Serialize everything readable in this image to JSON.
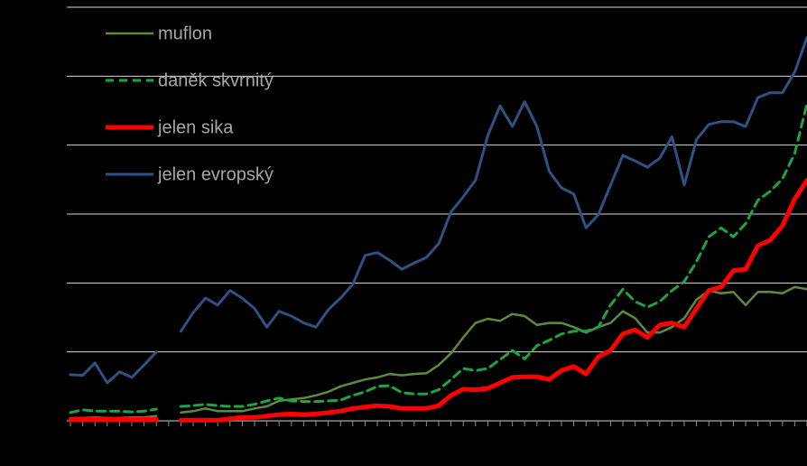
{
  "chart_data": {
    "type": "line",
    "categories": [
      null,
      null,
      null,
      null,
      null,
      null,
      null,
      null,
      null,
      null,
      null,
      null,
      null,
      null,
      null,
      null,
      null,
      null,
      null,
      null,
      null,
      null,
      null,
      null,
      null,
      null,
      null,
      null,
      null,
      null,
      null,
      null,
      null,
      null,
      null,
      null,
      null,
      null,
      null,
      null,
      null,
      null,
      null,
      null,
      null,
      null,
      null,
      null,
      null,
      null,
      null,
      null,
      null,
      null,
      null,
      null,
      null,
      null,
      null,
      null,
      null
    ],
    "series": [
      {
        "name": "muflon",
        "color": "#5e8c3a",
        "linewidth": 2.5,
        "linestyle": "solid",
        "values": [
          0.04,
          0.04,
          0.05,
          0.04,
          0.04,
          0.05,
          0.05,
          0.07,
          null,
          0.12,
          0.14,
          0.18,
          0.14,
          0.14,
          0.14,
          0.18,
          0.21,
          0.29,
          0.31,
          0.33,
          0.37,
          0.42,
          0.5,
          0.55,
          0.6,
          0.63,
          0.68,
          0.66,
          0.68,
          0.69,
          0.81,
          0.98,
          1.21,
          1.42,
          1.48,
          1.45,
          1.55,
          1.52,
          1.39,
          1.42,
          1.42,
          1.36,
          1.28,
          1.36,
          1.42,
          1.59,
          1.49,
          1.28,
          1.28,
          1.36,
          1.49,
          1.76,
          1.89,
          1.85,
          1.87,
          1.68,
          1.87,
          1.87,
          1.85,
          1.94,
          1.91
        ]
      },
      {
        "name": "daněk skvrnitý",
        "color": "#1ea345",
        "linewidth": 3,
        "linestyle": "dashed",
        "values": [
          0.12,
          0.16,
          0.14,
          0.14,
          0.14,
          0.13,
          0.14,
          0.17,
          null,
          0.21,
          0.22,
          0.24,
          0.22,
          0.21,
          0.21,
          0.24,
          0.29,
          0.33,
          0.29,
          0.28,
          0.28,
          0.29,
          0.3,
          0.37,
          0.42,
          0.5,
          0.51,
          0.41,
          0.39,
          0.39,
          0.45,
          0.6,
          0.76,
          0.73,
          0.76,
          0.89,
          1.02,
          0.9,
          1.09,
          1.17,
          1.26,
          1.3,
          1.3,
          1.36,
          1.68,
          1.91,
          1.73,
          1.65,
          1.73,
          1.89,
          2.02,
          2.31,
          2.67,
          2.8,
          2.67,
          2.86,
          3.2,
          3.33,
          3.51,
          3.88,
          4.6
        ]
      },
      {
        "name": "jelen sika",
        "color": "#ff0000",
        "linewidth": 5,
        "linestyle": "solid",
        "values": [
          0.02,
          0.02,
          0.02,
          0.02,
          0.02,
          0.02,
          0.02,
          0.02,
          null,
          0.01,
          0.01,
          0.01,
          0.01,
          0.03,
          0.05,
          0.05,
          0.07,
          0.09,
          0.1,
          0.09,
          0.1,
          0.12,
          0.14,
          0.18,
          0.2,
          0.22,
          0.21,
          0.18,
          0.18,
          0.18,
          0.22,
          0.37,
          0.46,
          0.45,
          0.47,
          0.55,
          0.63,
          0.64,
          0.64,
          0.6,
          0.73,
          0.79,
          0.68,
          0.93,
          1.02,
          1.26,
          1.32,
          1.21,
          1.39,
          1.42,
          1.36,
          1.63,
          1.89,
          1.94,
          2.18,
          2.2,
          2.54,
          2.62,
          2.83,
          3.22,
          3.49
        ]
      },
      {
        "name": "jelen evropský",
        "color": "#2e5283",
        "linewidth": 3,
        "linestyle": "solid",
        "values": [
          0.67,
          0.66,
          0.84,
          0.55,
          0.71,
          0.63,
          0.81,
          1.0,
          null,
          1.3,
          1.57,
          1.78,
          1.68,
          1.89,
          1.78,
          1.63,
          1.36,
          1.59,
          1.52,
          1.42,
          1.36,
          1.61,
          1.78,
          1.98,
          2.4,
          2.44,
          2.33,
          2.2,
          2.29,
          2.37,
          2.57,
          3.03,
          3.25,
          3.49,
          4.14,
          4.57,
          4.27,
          4.63,
          4.27,
          3.62,
          3.38,
          3.29,
          2.8,
          2.99,
          3.42,
          3.85,
          3.77,
          3.68,
          3.81,
          4.12,
          3.42,
          4.08,
          4.3,
          4.34,
          4.34,
          4.27,
          4.69,
          4.76,
          4.76,
          5.06,
          5.56
        ]
      }
    ],
    "ylim": [
      0,
      6
    ],
    "yticks": [
      0,
      1,
      2,
      3,
      4,
      5,
      6
    ],
    "grid": true,
    "legend": "upper left"
  }
}
